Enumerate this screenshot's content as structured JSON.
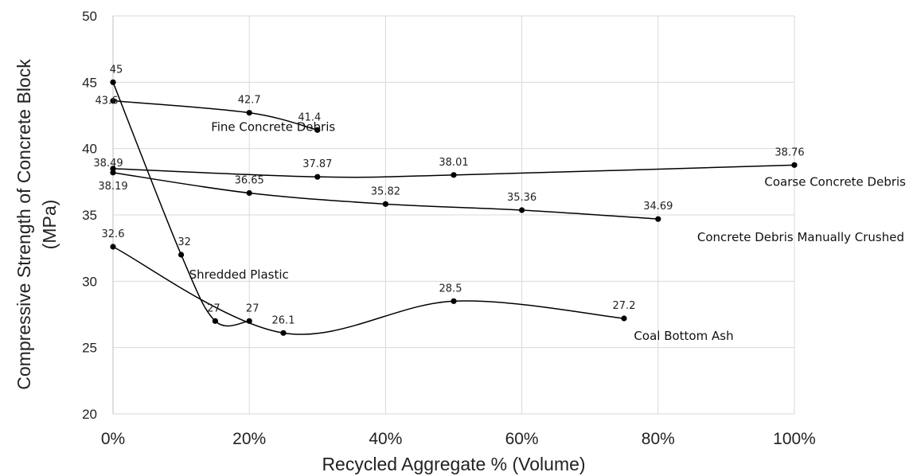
{
  "chart_data": {
    "type": "line",
    "xlabel": "Recycled Aggregate % (Volume)",
    "ylabel_line1": "Compressive Strength of Concrete Block",
    "ylabel_line2": "(MPa)",
    "xlim": [
      0,
      100
    ],
    "ylim": [
      20,
      50
    ],
    "x_ticks": [
      0,
      20,
      40,
      60,
      80,
      100
    ],
    "x_tick_labels": [
      "0%",
      "20%",
      "40%",
      "60%",
      "80%",
      "100%"
    ],
    "y_ticks": [
      20,
      25,
      30,
      35,
      40,
      45,
      50
    ],
    "y_tick_labels": [
      "20",
      "25",
      "30",
      "35",
      "40",
      "45",
      "50"
    ],
    "grid": "vertical and horizontal",
    "legend": "none (series labeled inline)",
    "series": [
      {
        "name": "Fine Concrete Debris",
        "x": [
          0,
          20,
          30
        ],
        "y": [
          43.6,
          42.7,
          41.4
        ],
        "labels": [
          "43.6",
          "42.7",
          "41.4"
        ]
      },
      {
        "name": "Coarse Concrete Debris",
        "x": [
          0,
          30,
          50,
          100
        ],
        "y": [
          38.49,
          37.87,
          38.01,
          38.76
        ],
        "labels": [
          "38.49",
          "37.87",
          "38.01",
          "38.76"
        ]
      },
      {
        "name": "Concrete Debris Manually Crushed",
        "x": [
          0,
          20,
          40,
          60,
          80
        ],
        "y": [
          38.19,
          36.65,
          35.82,
          35.36,
          34.69
        ],
        "labels": [
          "38.19",
          "36.65",
          "35.82",
          "35.36",
          "34.69"
        ]
      },
      {
        "name": "Shredded Plastic",
        "x": [
          0,
          10,
          15,
          20
        ],
        "y": [
          45,
          32,
          27,
          27
        ],
        "labels": [
          "45",
          "32",
          "27",
          "27"
        ]
      },
      {
        "name": "Coal Bottom Ash",
        "x": [
          0,
          25,
          50,
          75
        ],
        "y": [
          32.6,
          26.1,
          28.5,
          27.2
        ],
        "labels": [
          "32.6",
          "26.1",
          "28.5",
          "27.2"
        ]
      }
    ],
    "colors": {
      "line": "#000000",
      "grid": "#d9d9d9"
    }
  }
}
